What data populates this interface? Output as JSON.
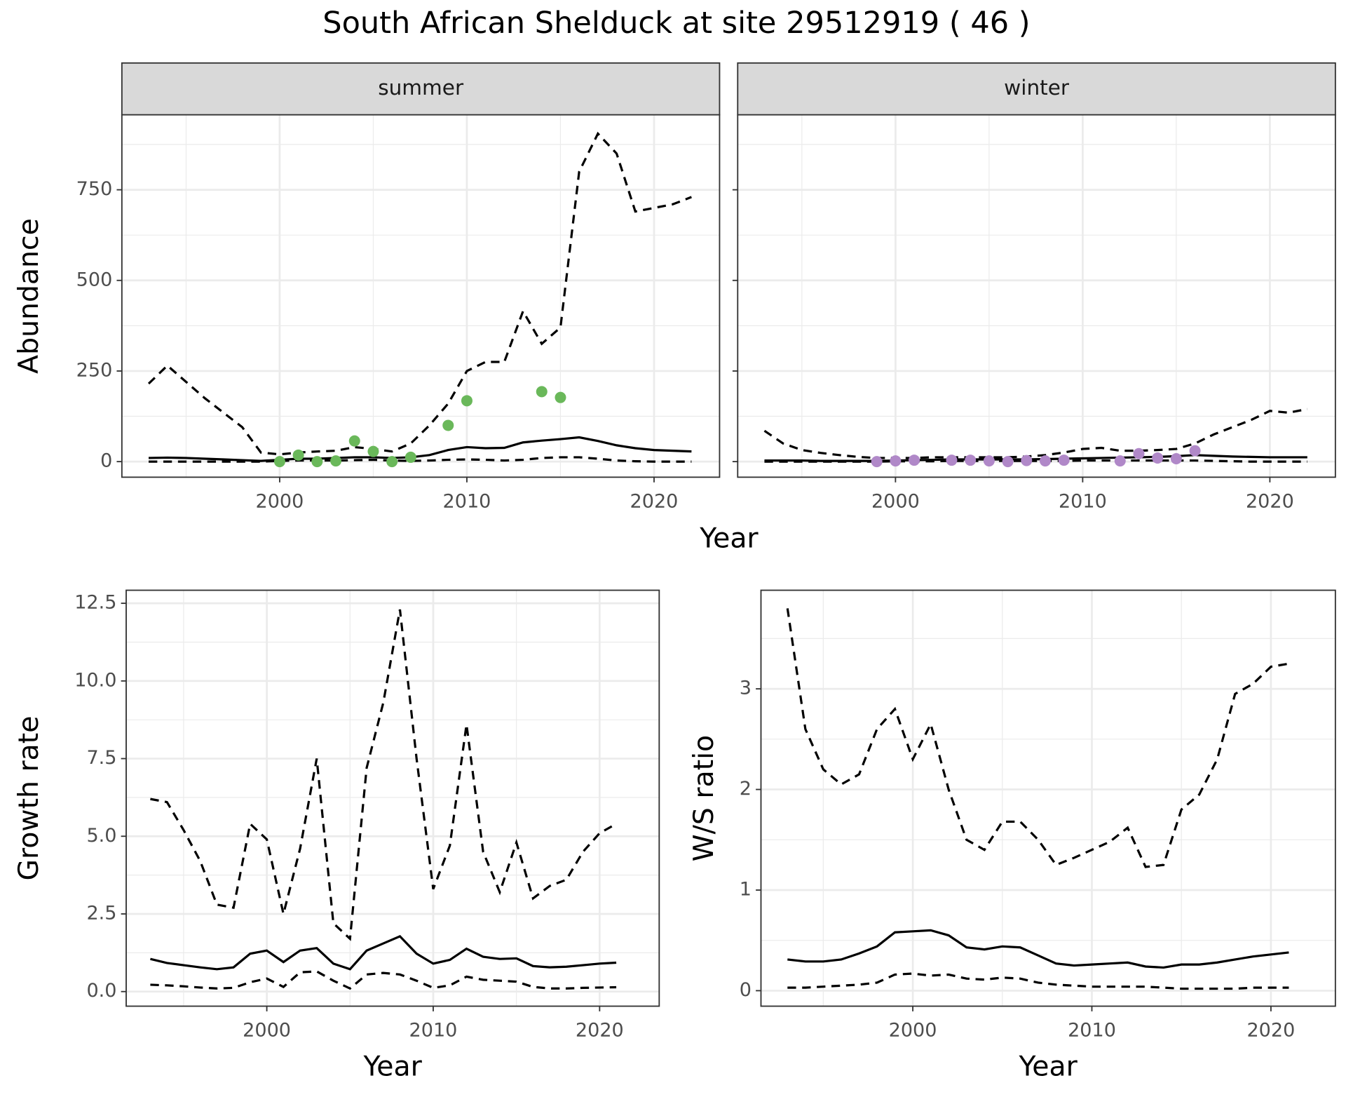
{
  "title": "South African Shelduck at site 29512919 ( 46 )",
  "chart_data": [
    {
      "type": "line",
      "strip": "summer",
      "ylabel": "Abundance",
      "xlabel": "Year",
      "x": [
        1993,
        1994,
        1995,
        1996,
        1997,
        1998,
        1999,
        2000,
        2001,
        2002,
        2003,
        2004,
        2005,
        2006,
        2007,
        2008,
        2009,
        2010,
        2011,
        2012,
        2013,
        2014,
        2015,
        2016,
        2017,
        2018,
        2019,
        2020,
        2021,
        2022
      ],
      "lines": [
        {
          "style": "solid",
          "color": "#000000",
          "values": [
            10,
            11,
            10,
            8,
            6,
            4,
            2,
            5,
            8,
            8,
            10,
            12,
            12,
            10,
            12,
            18,
            32,
            40,
            37,
            38,
            53,
            58,
            62,
            67,
            57,
            45,
            37,
            32,
            30,
            28
          ]
        },
        {
          "style": "dashed",
          "color": "#000000",
          "values": [
            215,
            265,
            220,
            175,
            135,
            95,
            25,
            20,
            25,
            28,
            30,
            40,
            35,
            28,
            50,
            100,
            160,
            250,
            275,
            275,
            415,
            325,
            370,
            800,
            905,
            850,
            690,
            700,
            710,
            730
          ]
        },
        {
          "style": "dashed",
          "color": "#000000",
          "values": [
            0,
            0,
            0,
            0,
            0,
            0,
            0,
            2,
            3,
            3,
            3,
            4,
            5,
            3,
            2,
            3,
            5,
            6,
            5,
            3,
            5,
            10,
            12,
            12,
            8,
            3,
            1,
            0,
            0,
            0
          ]
        }
      ],
      "points": {
        "color": "#6ab85a",
        "x": [
          2000,
          2001,
          2002,
          2003,
          2004,
          2005,
          2006,
          2007,
          2009,
          2010,
          2014,
          2015
        ],
        "values": [
          0,
          18,
          0,
          2,
          57,
          28,
          0,
          12,
          100,
          168,
          193,
          177
        ]
      },
      "xlim": [
        1991.57,
        2023.5
      ],
      "xticks": [
        2000,
        2010,
        2020
      ],
      "xminor": [
        1995,
        2005,
        2015
      ],
      "ylim": [
        -43,
        957
      ],
      "yticks": [
        0,
        250,
        500,
        750
      ],
      "yminor": [
        125,
        375,
        625,
        875
      ],
      "ytick_labels": true,
      "grid": true
    },
    {
      "type": "line",
      "strip": "winter",
      "x": [
        1993,
        1994,
        1995,
        1996,
        1997,
        1998,
        1999,
        2000,
        2001,
        2002,
        2003,
        2004,
        2005,
        2006,
        2007,
        2008,
        2009,
        2010,
        2011,
        2012,
        2013,
        2014,
        2015,
        2016,
        2017,
        2018,
        2019,
        2020,
        2021,
        2022
      ],
      "lines": [
        {
          "style": "solid",
          "color": "#000000",
          "values": [
            3,
            3,
            3,
            2,
            2,
            2,
            2,
            3,
            4,
            5,
            6,
            6,
            6,
            6,
            6,
            7,
            8,
            9,
            10,
            11,
            12,
            13,
            15,
            18,
            16,
            14,
            13,
            12,
            12,
            12
          ]
        },
        {
          "style": "dashed",
          "color": "#000000",
          "values": [
            85,
            50,
            32,
            24,
            18,
            13,
            10,
            10,
            10,
            12,
            12,
            12,
            12,
            12,
            14,
            18,
            25,
            35,
            38,
            30,
            30,
            32,
            35,
            50,
            75,
            95,
            115,
            140,
            135,
            145
          ]
        },
        {
          "style": "dashed",
          "color": "#000000",
          "values": [
            0,
            0,
            0,
            0,
            0,
            0,
            0,
            1,
            1,
            1,
            2,
            2,
            2,
            2,
            2,
            2,
            2,
            3,
            3,
            3,
            3,
            3,
            3,
            3,
            2,
            1,
            0,
            0,
            0,
            0
          ]
        }
      ],
      "points": {
        "color": "#b088c8",
        "x": [
          1999,
          2000,
          2001,
          2003,
          2004,
          2005,
          2006,
          2007,
          2008,
          2009,
          2012,
          2013,
          2014,
          2015,
          2016
        ],
        "values": [
          0,
          2,
          4,
          4,
          4,
          2,
          0,
          3,
          2,
          4,
          2,
          22,
          10,
          8,
          30
        ]
      },
      "xlim": [
        1991.57,
        2023.5
      ],
      "xticks": [
        2000,
        2010,
        2020
      ],
      "xminor": [
        1995,
        2005,
        2015
      ],
      "ylim": [
        -43,
        957
      ],
      "yticks": [
        0,
        250,
        500,
        750
      ],
      "yminor": [
        125,
        375,
        625,
        875
      ],
      "ytick_labels": false,
      "grid": true
    },
    {
      "type": "line",
      "ylabel": "Growth rate",
      "xlabel": "Year",
      "x": [
        1993,
        1994,
        1995,
        1996,
        1997,
        1998,
        1999,
        2000,
        2001,
        2002,
        2003,
        2004,
        2005,
        2006,
        2007,
        2008,
        2009,
        2010,
        2011,
        2012,
        2013,
        2014,
        2015,
        2016,
        2017,
        2018,
        2019,
        2020,
        2021
      ],
      "lines": [
        {
          "style": "solid",
          "color": "#000000",
          "values": [
            1.05,
            0.92,
            0.85,
            0.78,
            0.72,
            0.78,
            1.22,
            1.32,
            0.95,
            1.32,
            1.4,
            0.9,
            0.72,
            1.32,
            1.55,
            1.78,
            1.22,
            0.9,
            1.02,
            1.38,
            1.12,
            1.05,
            1.07,
            0.82,
            0.78,
            0.8,
            0.85,
            0.9,
            0.93
          ]
        },
        {
          "style": "dashed",
          "color": "#000000",
          "values": [
            6.2,
            6.1,
            5.2,
            4.2,
            2.8,
            2.7,
            5.4,
            4.9,
            2.5,
            4.6,
            7.5,
            2.2,
            1.7,
            7.2,
            9.3,
            12.3,
            7.5,
            3.3,
            4.7,
            8.6,
            4.5,
            3.2,
            4.8,
            3.0,
            3.4,
            3.6,
            4.5,
            5.1,
            5.4
          ]
        },
        {
          "style": "dashed",
          "color": "#000000",
          "values": [
            0.22,
            0.2,
            0.17,
            0.13,
            0.1,
            0.12,
            0.3,
            0.42,
            0.15,
            0.62,
            0.65,
            0.35,
            0.1,
            0.55,
            0.6,
            0.55,
            0.35,
            0.12,
            0.2,
            0.48,
            0.38,
            0.35,
            0.32,
            0.15,
            0.1,
            0.1,
            0.12,
            0.13,
            0.14
          ]
        }
      ],
      "xlim": [
        1991.55,
        2023.58
      ],
      "xticks": [
        2000,
        2010,
        2020
      ],
      "xminor": [
        1995,
        2005,
        2015
      ],
      "ylim": [
        -0.47,
        12.92
      ],
      "yticks": [
        {
          "value": 0,
          "label": "0.0"
        },
        2.5,
        {
          "value": 5,
          "label": "5.0"
        },
        7.5,
        {
          "value": 10,
          "label": "10.0"
        },
        12.5
      ],
      "yminor": [
        1.25,
        3.75,
        6.25,
        8.75,
        11.25
      ],
      "ytick_labels": true,
      "grid": true
    },
    {
      "type": "line",
      "ylabel": "W/S ratio",
      "xlabel": "Year",
      "x": [
        1993,
        1994,
        1995,
        1996,
        1997,
        1998,
        1999,
        2000,
        2001,
        2002,
        2003,
        2004,
        2005,
        2006,
        2007,
        2008,
        2009,
        2010,
        2011,
        2012,
        2013,
        2014,
        2015,
        2016,
        2017,
        2018,
        2019,
        2020,
        2021
      ],
      "lines": [
        {
          "style": "solid",
          "color": "#000000",
          "values": [
            0.31,
            0.29,
            0.29,
            0.31,
            0.37,
            0.44,
            0.58,
            0.59,
            0.6,
            0.55,
            0.43,
            0.41,
            0.44,
            0.43,
            0.35,
            0.27,
            0.25,
            0.26,
            0.27,
            0.28,
            0.24,
            0.23,
            0.26,
            0.26,
            0.28,
            0.31,
            0.34,
            0.36,
            0.38
          ]
        },
        {
          "style": "dashed",
          "color": "#000000",
          "values": [
            3.8,
            2.6,
            2.2,
            2.05,
            2.15,
            2.6,
            2.8,
            2.3,
            2.65,
            2.0,
            1.5,
            1.4,
            1.68,
            1.68,
            1.5,
            1.25,
            1.32,
            1.4,
            1.48,
            1.62,
            1.23,
            1.25,
            1.8,
            1.95,
            2.3,
            2.95,
            3.05,
            3.22,
            3.25
          ]
        },
        {
          "style": "dashed",
          "color": "#000000",
          "values": [
            0.03,
            0.03,
            0.04,
            0.05,
            0.06,
            0.08,
            0.16,
            0.17,
            0.15,
            0.16,
            0.12,
            0.11,
            0.13,
            0.12,
            0.08,
            0.06,
            0.05,
            0.04,
            0.04,
            0.04,
            0.04,
            0.03,
            0.02,
            0.02,
            0.02,
            0.02,
            0.03,
            0.03,
            0.03
          ]
        }
      ],
      "xlim": [
        1991.52,
        2023.6
      ],
      "xticks": [
        2000,
        2010,
        2020
      ],
      "xminor": [
        1995,
        2005,
        2015
      ],
      "ylim": [
        -0.154,
        3.98
      ],
      "yticks": [
        0,
        1,
        2,
        3
      ],
      "yminor": [
        0.5,
        1.5,
        2.5,
        3.5
      ],
      "ytick_labels": true,
      "grid": true
    }
  ]
}
